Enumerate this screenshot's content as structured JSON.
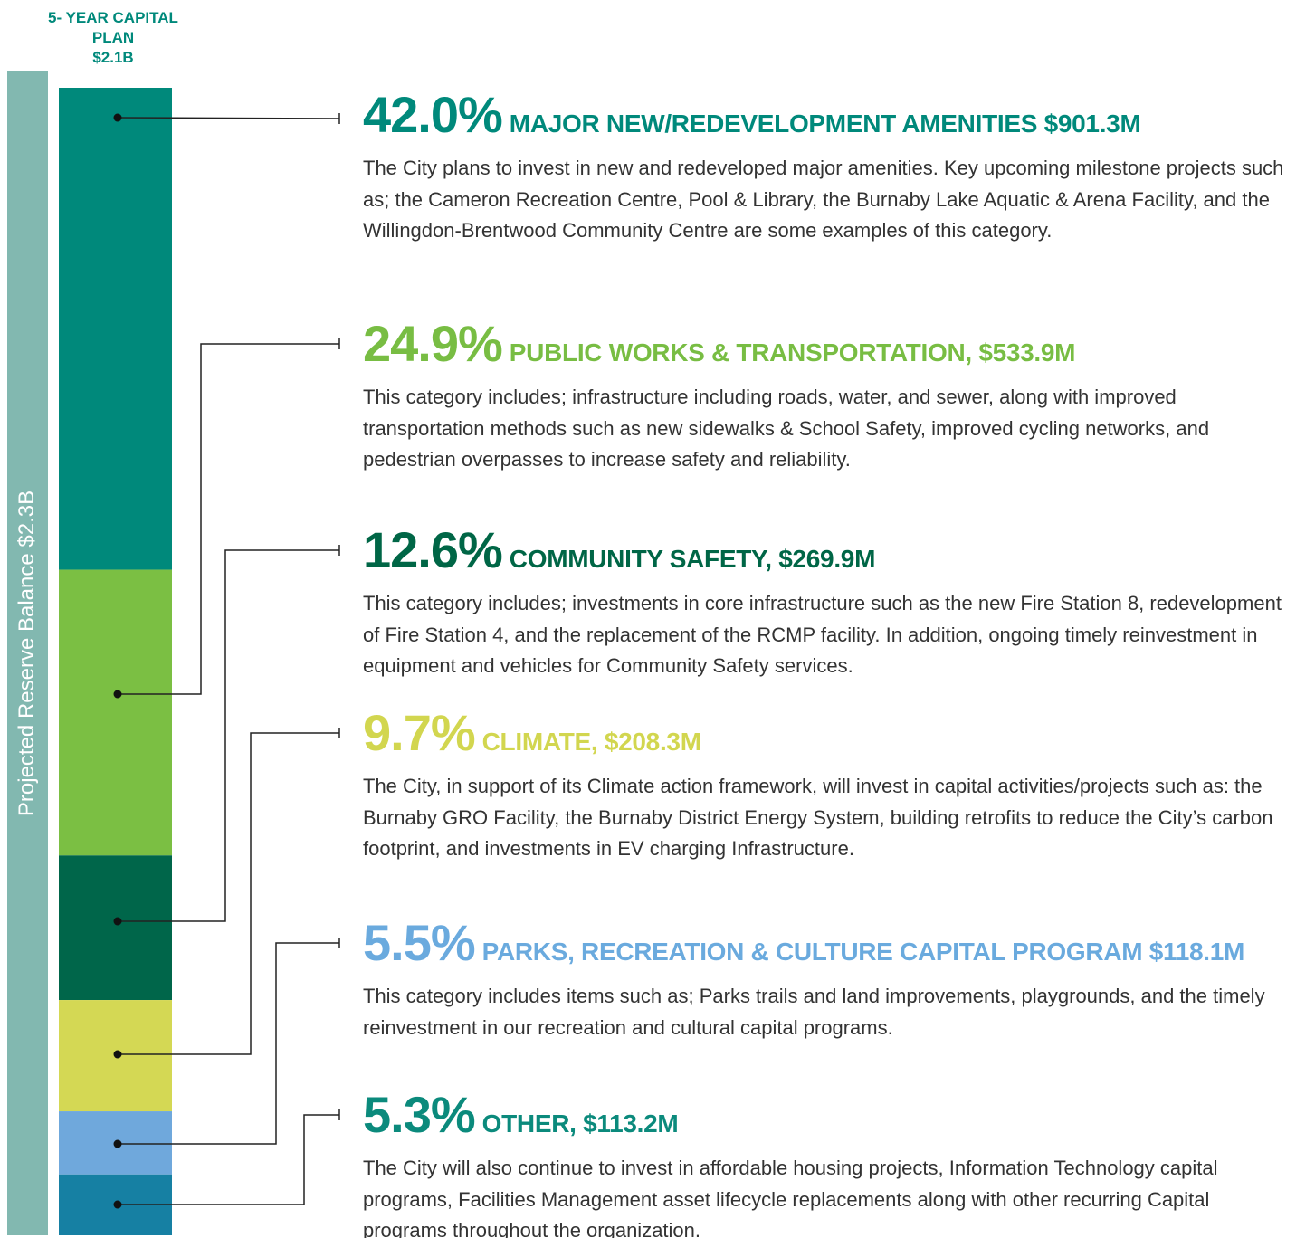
{
  "chart_data": {
    "type": "stacked-bar",
    "title": "5- YEAR CAPITAL PLAN",
    "subtitle": "$2.1B",
    "ylabel": "Projected Reserve Balance $2.3B",
    "ylim": [
      0,
      100
    ],
    "series": [
      {
        "name": "MAJOR NEW/REDEVELOPMENT AMENITIES $901.3M",
        "color": "#00897b",
        "label_color": "#00897b",
        "values": [
          42.0
        ],
        "value_labels": [
          "42.0%"
        ],
        "description": "The City plans to invest in new and redeveloped major amenities. Key upcoming milestone projects such as; the Cameron Recreation Centre, Pool & Library, the Burnaby Lake Aquatic & Arena Facility, and the Willingdon-Brentwood Community Centre are some examples of this category."
      },
      {
        "name": "PUBLIC WORKS & TRANSPORTATION, $533.9M",
        "color": "#7bbf43",
        "label_color": "#78bd43",
        "values": [
          24.9
        ],
        "value_labels": [
          "24.9%"
        ],
        "description": "This category includes; infrastructure including roads, water, and sewer, along with improved transportation methods such as new sidewalks & School Safety, improved cycling networks, and pedestrian overpasses to increase safety and reliability."
      },
      {
        "name": "COMMUNITY SAFETY, $269.9M",
        "color": "#00664a",
        "label_color": "#006646",
        "values": [
          12.6
        ],
        "value_labels": [
          "12.6%"
        ],
        "description": "This category includes; investments in core infrastructure such as the new Fire Station 8, redevelopment of Fire Station 4, and the replacement of the RCMP facility. In addition, ongoing timely reinvestment in equipment and vehicles for Community Safety services."
      },
      {
        "name": "CLIMATE, $208.3M",
        "color": "#d4d854",
        "label_color": "#d2d64f",
        "values": [
          9.7
        ],
        "value_labels": [
          "9.7%"
        ],
        "description": "The City, in support of its Climate action framework, will invest in capital activities/projects such as: the Burnaby GRO Facility, the Burnaby District Energy System, building retrofits to reduce the City’s carbon footprint, and investments in EV charging Infrastructure."
      },
      {
        "name": "PARKS, RECREATION & CULTURE CAPITAL PROGRAM $118.1M",
        "color": "#6fa8dc",
        "label_color": "#6aaade",
        "values": [
          5.5
        ],
        "value_labels": [
          "5.5%"
        ],
        "description": "This category includes items such as; Parks trails and land improvements, playgrounds, and the timely reinvestment in our recreation and cultural capital programs."
      },
      {
        "name": "OTHER, $113.2M",
        "color": "#1680a3",
        "label_color": "#0b8a7c",
        "values": [
          5.3
        ],
        "value_labels": [
          "5.3%"
        ],
        "description": "The City will also continue to invest in affordable housing projects, Information Technology capital programs, Facilities Management asset lifecycle replacements along with other recurring Capital programs throughout the organization."
      }
    ]
  }
}
